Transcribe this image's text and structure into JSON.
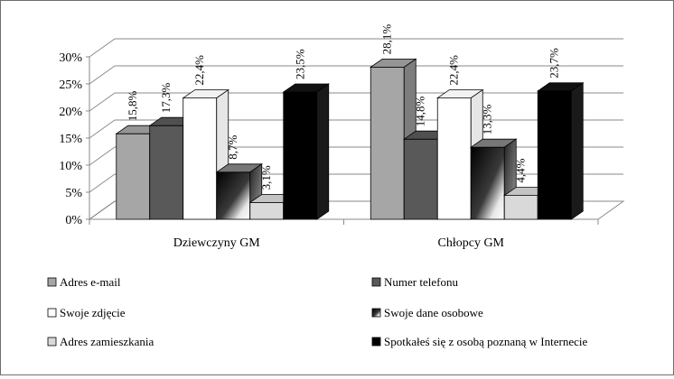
{
  "chart_data": {
    "type": "bar",
    "style": "3d-clustered-column",
    "categories": [
      "Dziewczyny GM",
      "Chłopcy GM"
    ],
    "series": [
      {
        "name": "Adres e-mail",
        "values": [
          15.8,
          28.1
        ],
        "labels": [
          "15,8%",
          "28,1%"
        ],
        "color": "#a6a6a6"
      },
      {
        "name": "Numer telefonu",
        "values": [
          17.3,
          14.8
        ],
        "labels": [
          "17,3%",
          "14,8%"
        ],
        "color": "#595959"
      },
      {
        "name": "Swoje zdjęcie",
        "values": [
          22.4,
          22.4
        ],
        "labels": [
          "22,4%",
          "22,4%"
        ],
        "color": "#ffffff"
      },
      {
        "name": "Swoje dane osobowe",
        "values": [
          8.7,
          13.3
        ],
        "labels": [
          "8,7%",
          "13,3%"
        ],
        "color": "gradient-black-white"
      },
      {
        "name": "Adres zamieszkania",
        "values": [
          3.1,
          4.4
        ],
        "labels": [
          "3,1%",
          "4,4%"
        ],
        "color": "#d9d9d9"
      },
      {
        "name": "Spotkałeś się z osobą poznaną w Internecie",
        "values": [
          23.5,
          23.7
        ],
        "labels": [
          "23,5%",
          "23,7%"
        ],
        "color": "#000000"
      }
    ],
    "yticks": [
      "0%",
      "5%",
      "10%",
      "15%",
      "20%",
      "25%",
      "30%"
    ],
    "ylim": [
      0,
      30
    ],
    "grid": true,
    "legend_position": "bottom"
  }
}
